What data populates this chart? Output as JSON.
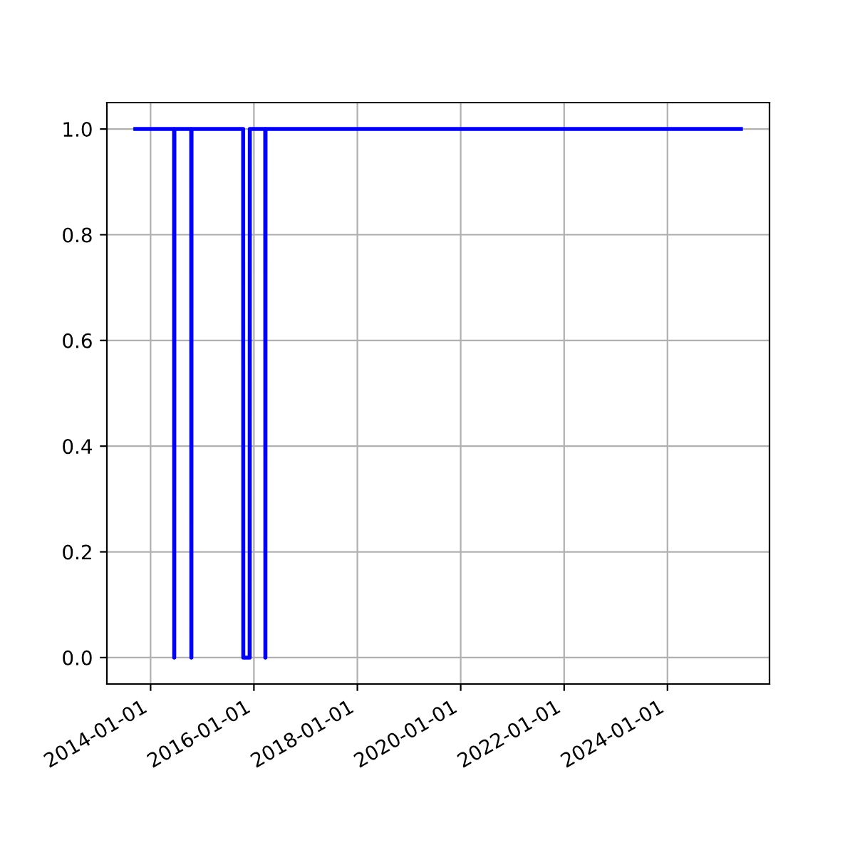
{
  "chart_data": {
    "type": "line",
    "x": [
      "2013-09-15",
      "2014-06-16",
      "2014-06-17",
      "2014-06-18",
      "2014-10-15",
      "2014-10-16",
      "2014-10-17",
      "2015-10-17",
      "2015-10-18",
      "2015-12-02",
      "2015-12-03",
      "2016-03-21",
      "2016-03-22",
      "2016-03-23",
      "2025-06-03"
    ],
    "series": [
      {
        "color": "#0000ff",
        "values": [
          1,
          1,
          0,
          1,
          1,
          0,
          1,
          1,
          0,
          0,
          1,
          1,
          0,
          1,
          1
        ]
      }
    ],
    "xlim": [
      "2013-02-26",
      "2025-12-22"
    ],
    "ylim": [
      -0.05,
      1.05
    ],
    "xticks": [
      "2014-01-01",
      "2016-01-01",
      "2018-01-01",
      "2020-01-01",
      "2022-01-01",
      "2024-01-01"
    ],
    "yticks": [
      {
        "value": 0,
        "label": "0.0"
      },
      {
        "value": 0.2,
        "label": "0.2"
      },
      {
        "value": 0.4,
        "label": "0.4"
      },
      {
        "value": 0.6,
        "label": "0.6"
      },
      {
        "value": 0.8,
        "label": "0.8"
      },
      {
        "value": 1,
        "label": "1.0"
      }
    ],
    "grid": true
  }
}
